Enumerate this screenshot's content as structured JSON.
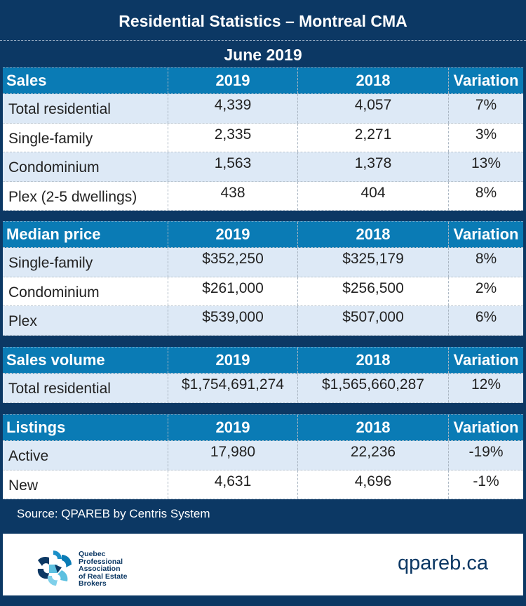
{
  "title": "Residential Statistics – Montreal CMA",
  "period": "June 2019",
  "sections": [
    {
      "header": [
        "Sales",
        "2019",
        "2018",
        "Variation"
      ],
      "rows": [
        [
          "Total residential",
          "4,339",
          "4,057",
          "7%"
        ],
        [
          "Single-family",
          "2,335",
          "2,271",
          "3%"
        ],
        [
          "Condominium",
          "1,563",
          "1,378",
          "13%"
        ],
        [
          "Plex (2-5 dwellings)",
          "438",
          "404",
          "8%"
        ]
      ]
    },
    {
      "header": [
        "Median price",
        "2019",
        "2018",
        "Variation"
      ],
      "rows": [
        [
          "Single-family",
          "$352,250",
          "$325,179",
          "8%"
        ],
        [
          "Condominium",
          "$261,000",
          "$256,500",
          "2%"
        ],
        [
          "Plex",
          "$539,000",
          "$507,000",
          "6%"
        ]
      ]
    },
    {
      "header": [
        "Sales volume",
        "2019",
        "2018",
        "Variation"
      ],
      "rows": [
        [
          "Total residential",
          "$1,754,691,274",
          "$1,565,660,287",
          "12%"
        ]
      ]
    },
    {
      "header": [
        "Listings",
        "2019",
        "2018",
        "Variation"
      ],
      "rows": [
        [
          "Active",
          "17,980",
          "22,236",
          "-19%"
        ],
        [
          "New",
          "4,631",
          "4,696",
          "-1%"
        ]
      ]
    }
  ],
  "source": "Source: QPAREB by Centris System",
  "footer": {
    "logo_text": [
      "Quebec",
      "Professional",
      "Association",
      "of Real Estate",
      "Brokers"
    ],
    "website": "qpareb.ca"
  },
  "colors": {
    "background": "#0c3864",
    "header": "#0a7bb5",
    "row_light": "#dde9f6",
    "row_white": "#ffffff"
  }
}
